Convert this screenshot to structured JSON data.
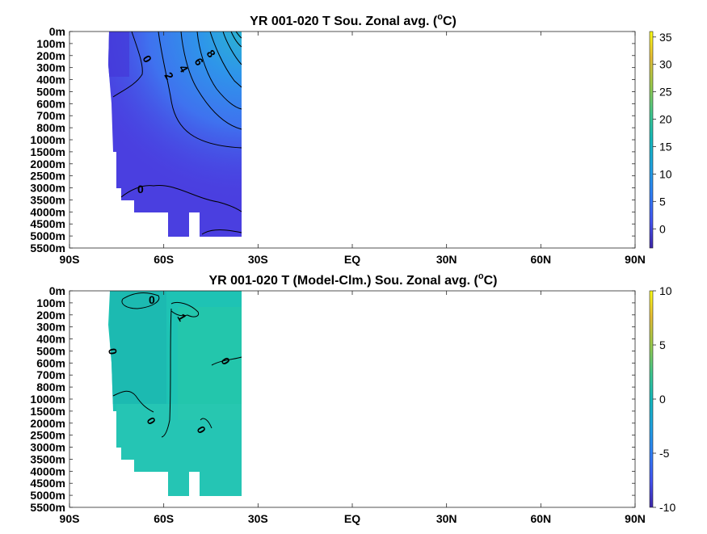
{
  "chart_data": [
    {
      "type": "heatmap",
      "title_main": "YR 001-020 T Sou. Zonal avg. (",
      "title_sup": "o",
      "title_end": "C)",
      "x_ticks": [
        "90S",
        "60S",
        "30S",
        "EQ",
        "30N",
        "60N",
        "90N"
      ],
      "y_ticks": [
        "0m",
        "100m",
        "200m",
        "300m",
        "400m",
        "500m",
        "600m",
        "700m",
        "800m",
        "1000m",
        "1500m",
        "2000m",
        "2500m",
        "3000m",
        "3500m",
        "4000m",
        "4500m",
        "5000m",
        "5500m"
      ],
      "colorbar": {
        "min": -3.5,
        "max": 36,
        "ticks": [
          35,
          30,
          25,
          20,
          15,
          10,
          5,
          0
        ]
      },
      "data_extent": {
        "lat_min": -78,
        "lat_max": -35,
        "depth_levels": "0m-5000m"
      },
      "contour_labels": [
        "0",
        "2",
        "4",
        "6",
        "8",
        "0"
      ]
    },
    {
      "type": "heatmap",
      "title_main": "YR 001-020 T (Model-Clm.) Sou. Zonal avg. (",
      "title_sup": "o",
      "title_end": "C)",
      "x_ticks": [
        "90S",
        "60S",
        "30S",
        "EQ",
        "30N",
        "60N",
        "90N"
      ],
      "y_ticks": [
        "0m",
        "100m",
        "200m",
        "300m",
        "400m",
        "500m",
        "600m",
        "700m",
        "800m",
        "1000m",
        "1500m",
        "2000m",
        "2500m",
        "3000m",
        "3500m",
        "4000m",
        "4500m",
        "5000m",
        "5500m"
      ],
      "colorbar": {
        "min": -10,
        "max": 10,
        "ticks": [
          10,
          5,
          0,
          -5,
          -10
        ]
      },
      "data_extent": {
        "lat_min": -78,
        "lat_max": -35,
        "depth_levels": "0m-5000m"
      },
      "contour_labels": [
        "0",
        "1",
        "0",
        "0",
        "0",
        "0"
      ]
    }
  ],
  "colors": {
    "panel1_deep": "#4a3fe0",
    "panel1_warm": "#3a86f0",
    "panel1_edge": "#2fa6e0",
    "panel2_fill": "#1ec3b4",
    "parula_low": "#3e26a8",
    "parula_mid": "#13b8bb",
    "parula_high": "#f9fb15"
  }
}
